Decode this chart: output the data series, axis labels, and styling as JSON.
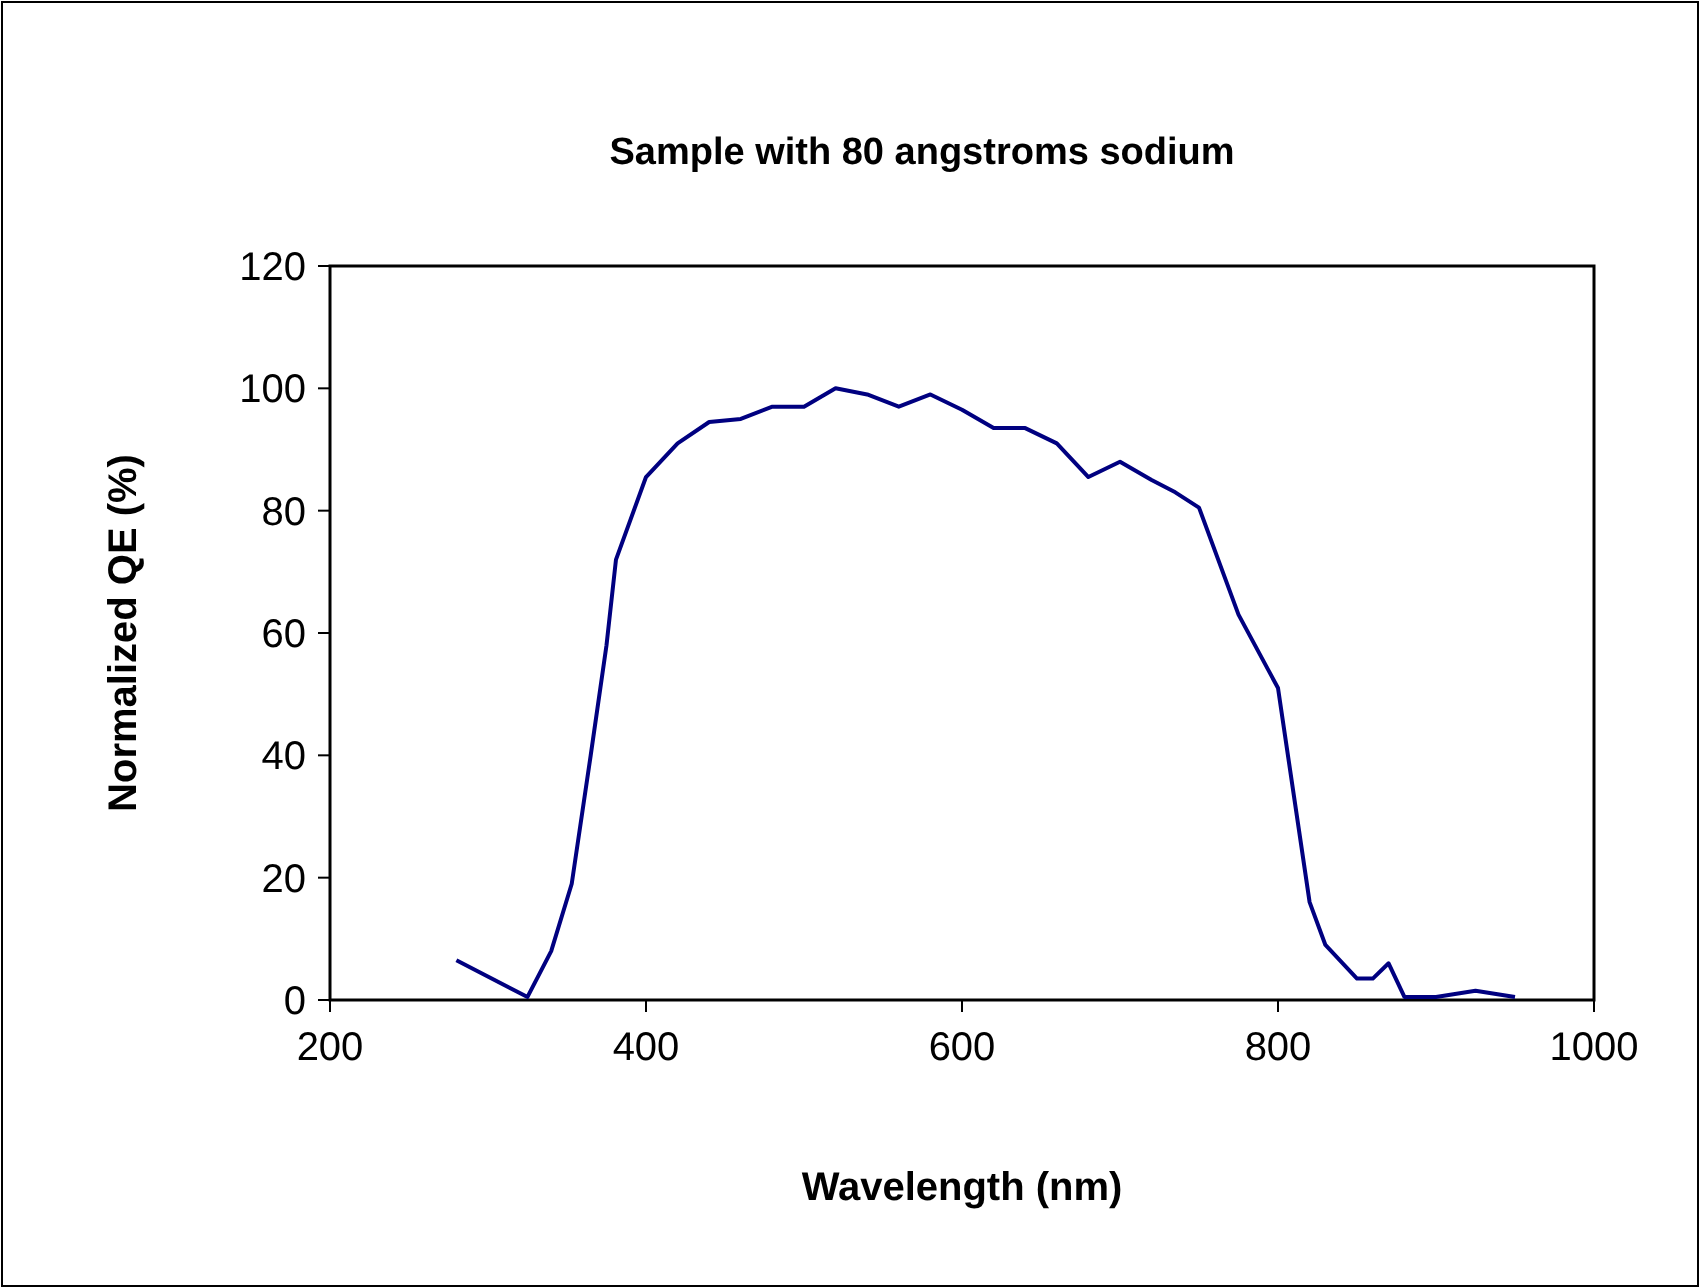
{
  "chart_data": {
    "type": "line",
    "title": "Sample with 80 angstroms sodium",
    "xlabel": "Wavelength (nm)",
    "ylabel": "Normalized QE (%)",
    "xlim": [
      200,
      1000
    ],
    "xticks": [
      200,
      400,
      600,
      800,
      1000
    ],
    "ylim": [
      0,
      120
    ],
    "yticks": [
      0,
      20,
      40,
      60,
      80,
      100,
      120
    ],
    "grid": false,
    "marker": "none",
    "line_style": "solid",
    "series": [
      {
        "color": "#000080",
        "x": [
          280,
          325,
          340,
          353,
          365,
          375,
          381,
          400,
          420,
          440,
          460,
          480,
          500,
          520,
          540,
          560,
          580,
          600,
          620,
          640,
          660,
          680,
          700,
          720,
          735,
          750,
          775,
          800,
          820,
          830,
          850,
          860,
          870,
          880,
          900,
          925,
          950
        ],
        "values": [
          6.5,
          0.5,
          8,
          19,
          40,
          58,
          72,
          85.5,
          91,
          94.5,
          95,
          97,
          97,
          100,
          99,
          97,
          99,
          96.5,
          93.5,
          93.5,
          91,
          85.5,
          88,
          85,
          83,
          80.5,
          63,
          51,
          16,
          9,
          3.5,
          3.5,
          6,
          0.5,
          0.5,
          1.5,
          0.5
        ]
      }
    ]
  }
}
